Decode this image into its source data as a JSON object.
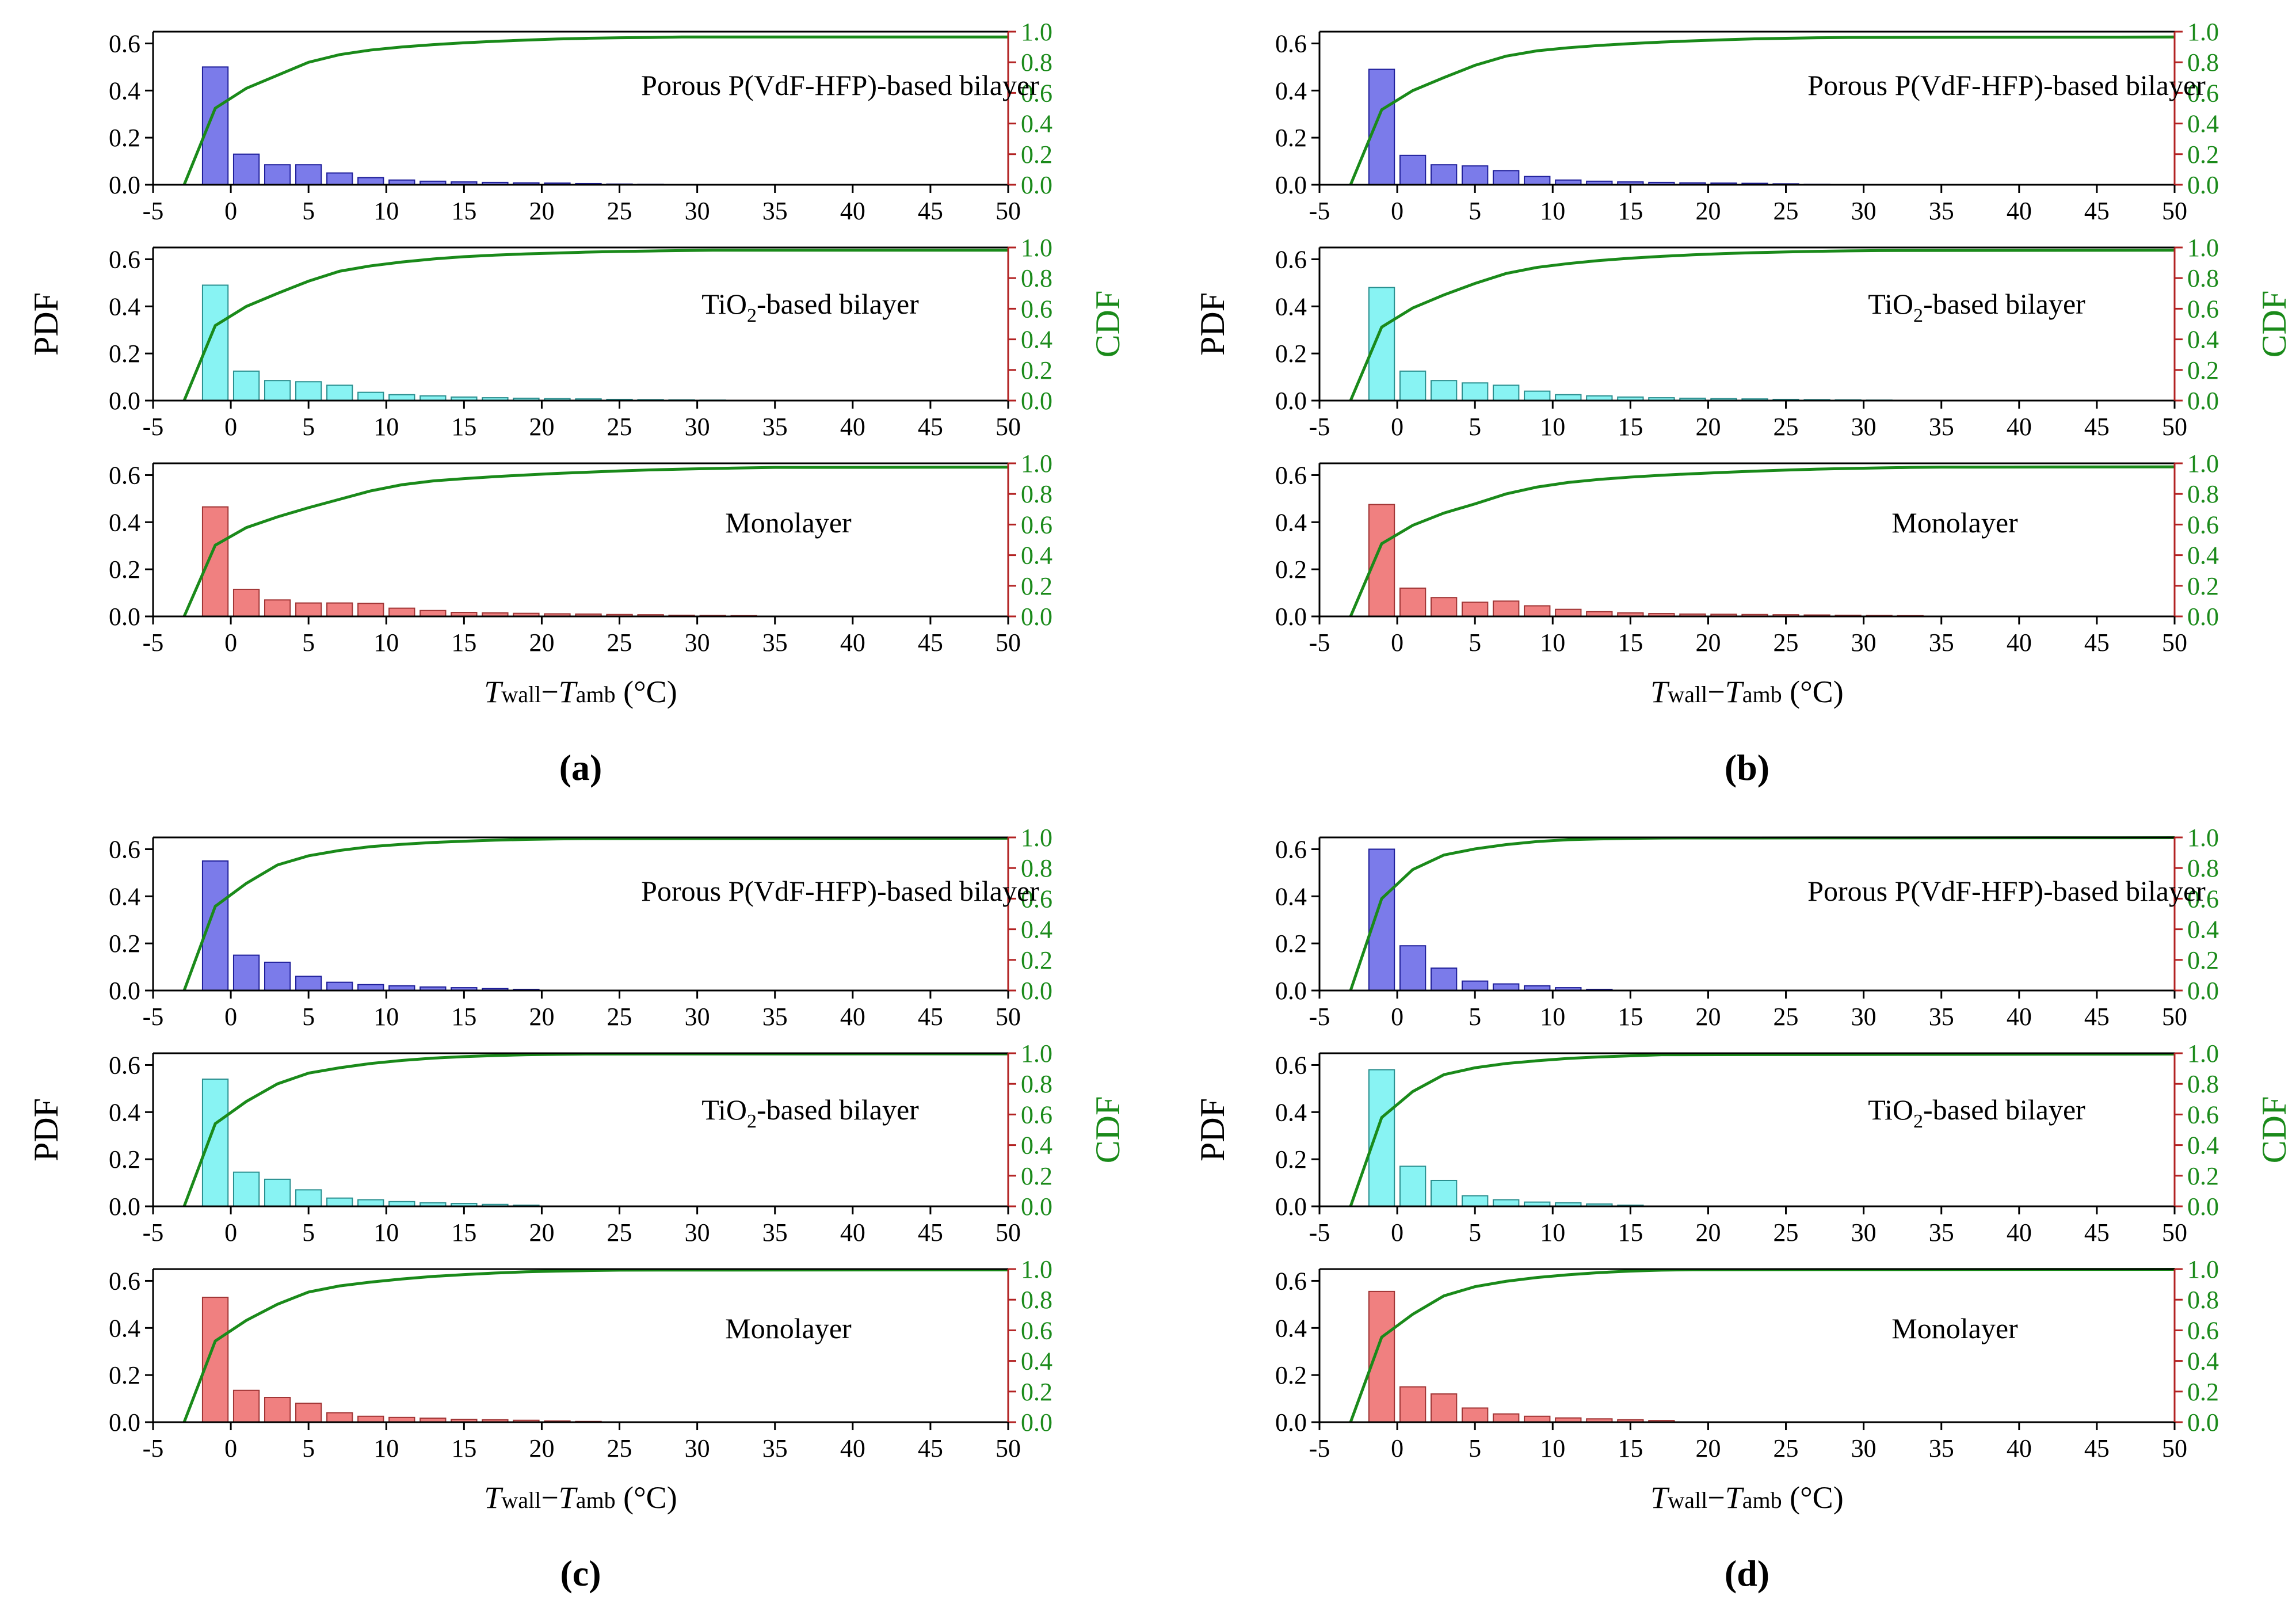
{
  "figure": {
    "panel_labels": [
      "(a)",
      "(b)",
      "(c)",
      "(d)"
    ],
    "y_left_label": "PDF",
    "y_right_label": "CDF",
    "x_label": {
      "t1": "T",
      "s1": "wall",
      "minus": "−",
      "t2": "T",
      "s2": "amb",
      "unit": " (°C)"
    },
    "colors": {
      "porous": "#7b7bea",
      "porous_edge": "#1f1f9a",
      "tio2": "#88f3f3",
      "tio2_edge": "#2a8f8f",
      "mono": "#f08080",
      "mono_edge": "#a03535",
      "cdf_line": "#1a8a1a",
      "right_axis": "#b22222"
    }
  },
  "chart_data": [
    {
      "type": "bar",
      "panel": "(a)",
      "xlabel": "Twall−Tamb (°C)",
      "xlim": [
        -5,
        50
      ],
      "x_ticks": [
        -5,
        0,
        5,
        10,
        15,
        20,
        25,
        30,
        35,
        40,
        45,
        50
      ],
      "ylim_left": [
        0,
        0.65
      ],
      "yticks_left": [
        "0.0",
        "0.2",
        "0.4",
        "0.6"
      ],
      "ylim_right": [
        0,
        1.0
      ],
      "yticks_right": [
        "0.0",
        "0.2",
        "0.4",
        "0.6",
        "0.8",
        "1.0"
      ],
      "bin_centers": [
        -1,
        1,
        3,
        5,
        7,
        9,
        11,
        13,
        15,
        17,
        19,
        21,
        23,
        25,
        27,
        29,
        31,
        33
      ],
      "subplots": [
        {
          "layer": "porous",
          "label_main": "Porous P(VdF-HFP)-based bilayer",
          "label_sub": "",
          "pdf": [
            0.5,
            0.13,
            0.085,
            0.085,
            0.05,
            0.03,
            0.02,
            0.015,
            0.012,
            0.01,
            0.008,
            0.007,
            0.005,
            0.003,
            0.002
          ],
          "cdf_x": [
            -3,
            -1,
            1,
            3,
            5,
            7,
            9,
            11,
            13,
            15,
            17,
            19,
            21,
            23,
            25,
            27,
            29,
            50
          ],
          "cdf": [
            0.0,
            0.5,
            0.63,
            0.715,
            0.8,
            0.85,
            0.88,
            0.9,
            0.915,
            0.927,
            0.937,
            0.945,
            0.952,
            0.957,
            0.96,
            0.962,
            0.965,
            0.965
          ]
        },
        {
          "layer": "tio2",
          "label_main": "TiO",
          "label_sub": "2",
          "label_tail": "-based bilayer",
          "pdf": [
            0.49,
            0.125,
            0.085,
            0.08,
            0.065,
            0.035,
            0.025,
            0.02,
            0.015,
            0.012,
            0.01,
            0.008,
            0.007,
            0.005,
            0.004,
            0.003,
            0.002
          ],
          "cdf_x": [
            -3,
            -1,
            1,
            3,
            5,
            7,
            9,
            11,
            13,
            15,
            17,
            19,
            21,
            23,
            25,
            27,
            29,
            31,
            50
          ],
          "cdf": [
            0.0,
            0.49,
            0.615,
            0.7,
            0.78,
            0.845,
            0.88,
            0.905,
            0.925,
            0.94,
            0.95,
            0.958,
            0.964,
            0.97,
            0.974,
            0.977,
            0.98,
            0.982,
            0.982
          ]
        },
        {
          "layer": "mono",
          "label_main": "Monolayer",
          "label_sub": "",
          "pdf": [
            0.465,
            0.115,
            0.07,
            0.057,
            0.057,
            0.055,
            0.035,
            0.025,
            0.017,
            0.015,
            0.013,
            0.011,
            0.01,
            0.008,
            0.007,
            0.005,
            0.004,
            0.003
          ],
          "cdf_x": [
            -3,
            -1,
            1,
            3,
            5,
            7,
            9,
            11,
            13,
            15,
            17,
            19,
            21,
            23,
            25,
            27,
            29,
            31,
            33,
            35,
            50
          ],
          "cdf": [
            0.0,
            0.465,
            0.58,
            0.65,
            0.71,
            0.765,
            0.82,
            0.86,
            0.885,
            0.9,
            0.913,
            0.924,
            0.934,
            0.942,
            0.95,
            0.957,
            0.962,
            0.966,
            0.97,
            0.973,
            0.975
          ]
        }
      ]
    },
    {
      "type": "bar",
      "panel": "(b)",
      "xlabel": "Twall−Tamb (°C)",
      "xlim": [
        -5,
        50
      ],
      "x_ticks": [
        -5,
        0,
        5,
        10,
        15,
        20,
        25,
        30,
        35,
        40,
        45,
        50
      ],
      "ylim_left": [
        0,
        0.65
      ],
      "yticks_left": [
        "0.0",
        "0.2",
        "0.4",
        "0.6"
      ],
      "ylim_right": [
        0,
        1.0
      ],
      "yticks_right": [
        "0.0",
        "0.2",
        "0.4",
        "0.6",
        "0.8",
        "1.0"
      ],
      "bin_centers": [
        -1,
        1,
        3,
        5,
        7,
        9,
        11,
        13,
        15,
        17,
        19,
        21,
        23,
        25,
        27,
        29,
        31,
        33
      ],
      "subplots": [
        {
          "layer": "porous",
          "label_main": "Porous P(VdF-HFP)-based bilayer",
          "label_sub": "",
          "pdf": [
            0.49,
            0.125,
            0.085,
            0.08,
            0.06,
            0.035,
            0.02,
            0.015,
            0.012,
            0.01,
            0.008,
            0.007,
            0.006,
            0.004,
            0.002
          ],
          "cdf_x": [
            -3,
            -1,
            1,
            3,
            5,
            7,
            9,
            11,
            13,
            15,
            17,
            19,
            21,
            23,
            25,
            27,
            29,
            50
          ],
          "cdf": [
            0.0,
            0.49,
            0.615,
            0.7,
            0.78,
            0.84,
            0.875,
            0.895,
            0.91,
            0.922,
            0.932,
            0.94,
            0.947,
            0.953,
            0.957,
            0.96,
            0.962,
            0.965
          ]
        },
        {
          "layer": "tio2",
          "label_main": "TiO",
          "label_sub": "2",
          "label_tail": "-based bilayer",
          "pdf": [
            0.48,
            0.125,
            0.085,
            0.075,
            0.065,
            0.04,
            0.025,
            0.02,
            0.015,
            0.012,
            0.01,
            0.008,
            0.007,
            0.005,
            0.004,
            0.003,
            0.002
          ],
          "cdf_x": [
            -3,
            -1,
            1,
            3,
            5,
            7,
            9,
            11,
            13,
            15,
            17,
            19,
            21,
            23,
            25,
            27,
            29,
            31,
            50
          ],
          "cdf": [
            0.0,
            0.48,
            0.605,
            0.69,
            0.765,
            0.83,
            0.87,
            0.895,
            0.915,
            0.93,
            0.942,
            0.952,
            0.96,
            0.966,
            0.971,
            0.975,
            0.978,
            0.98,
            0.982
          ]
        },
        {
          "layer": "mono",
          "label_main": "Monolayer",
          "label_sub": "",
          "pdf": [
            0.475,
            0.12,
            0.08,
            0.06,
            0.065,
            0.045,
            0.03,
            0.02,
            0.015,
            0.012,
            0.01,
            0.009,
            0.008,
            0.007,
            0.006,
            0.005,
            0.004,
            0.003
          ],
          "cdf_x": [
            -3,
            -1,
            1,
            3,
            5,
            7,
            9,
            11,
            13,
            15,
            17,
            19,
            21,
            23,
            25,
            27,
            29,
            31,
            33,
            35,
            50
          ],
          "cdf": [
            0.0,
            0.475,
            0.595,
            0.675,
            0.735,
            0.8,
            0.845,
            0.875,
            0.895,
            0.91,
            0.922,
            0.932,
            0.941,
            0.949,
            0.956,
            0.962,
            0.966,
            0.97,
            0.973,
            0.975,
            0.977
          ]
        }
      ]
    },
    {
      "type": "bar",
      "panel": "(c)",
      "xlabel": "Twall−Tamb (°C)",
      "xlim": [
        -5,
        50
      ],
      "x_ticks": [
        -5,
        0,
        5,
        10,
        15,
        20,
        25,
        30,
        35,
        40,
        45,
        50
      ],
      "ylim_left": [
        0,
        0.65
      ],
      "yticks_left": [
        "0.0",
        "0.2",
        "0.4",
        "0.6"
      ],
      "ylim_right": [
        0,
        1.0
      ],
      "yticks_right": [
        "0.0",
        "0.2",
        "0.4",
        "0.6",
        "0.8",
        "1.0"
      ],
      "bin_centers": [
        -1,
        1,
        3,
        5,
        7,
        9,
        11,
        13,
        15,
        17,
        19,
        21,
        23
      ],
      "subplots": [
        {
          "layer": "porous",
          "label_main": "Porous P(VdF-HFP)-based bilayer",
          "label_sub": "",
          "pdf": [
            0.55,
            0.15,
            0.12,
            0.06,
            0.035,
            0.025,
            0.02,
            0.015,
            0.012,
            0.008,
            0.005
          ],
          "cdf_x": [
            -3,
            -1,
            1,
            3,
            5,
            7,
            9,
            11,
            13,
            15,
            17,
            19,
            21,
            23,
            50
          ],
          "cdf": [
            0.0,
            0.55,
            0.7,
            0.82,
            0.88,
            0.915,
            0.94,
            0.955,
            0.967,
            0.975,
            0.982,
            0.987,
            0.99,
            0.992,
            0.995
          ]
        },
        {
          "layer": "tio2",
          "label_main": "TiO",
          "label_sub": "2",
          "label_tail": "-based bilayer",
          "pdf": [
            0.54,
            0.145,
            0.115,
            0.07,
            0.035,
            0.028,
            0.02,
            0.015,
            0.012,
            0.008,
            0.005
          ],
          "cdf_x": [
            -3,
            -1,
            1,
            3,
            5,
            7,
            9,
            11,
            13,
            15,
            17,
            19,
            21,
            23,
            50
          ],
          "cdf": [
            0.0,
            0.54,
            0.685,
            0.8,
            0.87,
            0.905,
            0.933,
            0.953,
            0.968,
            0.978,
            0.985,
            0.99,
            0.993,
            0.995,
            0.996
          ]
        },
        {
          "layer": "mono",
          "label_main": "Monolayer",
          "label_sub": "",
          "pdf": [
            0.53,
            0.135,
            0.105,
            0.08,
            0.04,
            0.025,
            0.02,
            0.017,
            0.012,
            0.01,
            0.008,
            0.005,
            0.003
          ],
          "cdf_x": [
            -3,
            -1,
            1,
            3,
            5,
            7,
            9,
            11,
            13,
            15,
            17,
            19,
            21,
            23,
            25,
            50
          ],
          "cdf": [
            0.0,
            0.53,
            0.665,
            0.77,
            0.85,
            0.89,
            0.915,
            0.935,
            0.952,
            0.964,
            0.974,
            0.982,
            0.987,
            0.99,
            0.993,
            0.995
          ]
        }
      ]
    },
    {
      "type": "bar",
      "panel": "(d)",
      "xlabel": "Twall−Tamb (°C)",
      "xlim": [
        -5,
        50
      ],
      "x_ticks": [
        -5,
        0,
        5,
        10,
        15,
        20,
        25,
        30,
        35,
        40,
        45,
        50
      ],
      "ylim_left": [
        0,
        0.65
      ],
      "yticks_left": [
        "0.0",
        "0.2",
        "0.4",
        "0.6"
      ],
      "ylim_right": [
        0,
        1.0
      ],
      "yticks_right": [
        "0.0",
        "0.2",
        "0.4",
        "0.6",
        "0.8",
        "1.0"
      ],
      "bin_centers": [
        -1,
        1,
        3,
        5,
        7,
        9,
        11,
        13,
        15,
        17
      ],
      "subplots": [
        {
          "layer": "porous",
          "label_main": "Porous P(VdF-HFP)-based bilayer",
          "label_sub": "",
          "pdf": [
            0.6,
            0.19,
            0.095,
            0.04,
            0.028,
            0.02,
            0.012,
            0.005
          ],
          "cdf_x": [
            -3,
            -1,
            1,
            3,
            5,
            7,
            9,
            11,
            13,
            15,
            17,
            50
          ],
          "cdf": [
            0.0,
            0.6,
            0.79,
            0.885,
            0.925,
            0.953,
            0.973,
            0.985,
            0.99,
            0.994,
            0.996,
            0.998
          ]
        },
        {
          "layer": "tio2",
          "label_main": "TiO",
          "label_sub": "2",
          "label_tail": "-based bilayer",
          "pdf": [
            0.58,
            0.17,
            0.11,
            0.045,
            0.028,
            0.018,
            0.015,
            0.01,
            0.005
          ],
          "cdf_x": [
            -3,
            -1,
            1,
            3,
            5,
            7,
            9,
            11,
            13,
            15,
            17,
            50
          ],
          "cdf": [
            0.0,
            0.58,
            0.75,
            0.86,
            0.905,
            0.933,
            0.951,
            0.966,
            0.976,
            0.983,
            0.99,
            0.995
          ]
        },
        {
          "layer": "mono",
          "label_main": "Monolayer",
          "label_sub": "",
          "pdf": [
            0.555,
            0.15,
            0.12,
            0.06,
            0.035,
            0.025,
            0.018,
            0.014,
            0.01,
            0.007
          ],
          "cdf_x": [
            -3,
            -1,
            1,
            3,
            5,
            7,
            9,
            11,
            13,
            15,
            17,
            19,
            50
          ],
          "cdf": [
            0.0,
            0.555,
            0.705,
            0.825,
            0.885,
            0.92,
            0.945,
            0.963,
            0.977,
            0.987,
            0.993,
            0.996,
            0.998
          ]
        }
      ]
    }
  ]
}
